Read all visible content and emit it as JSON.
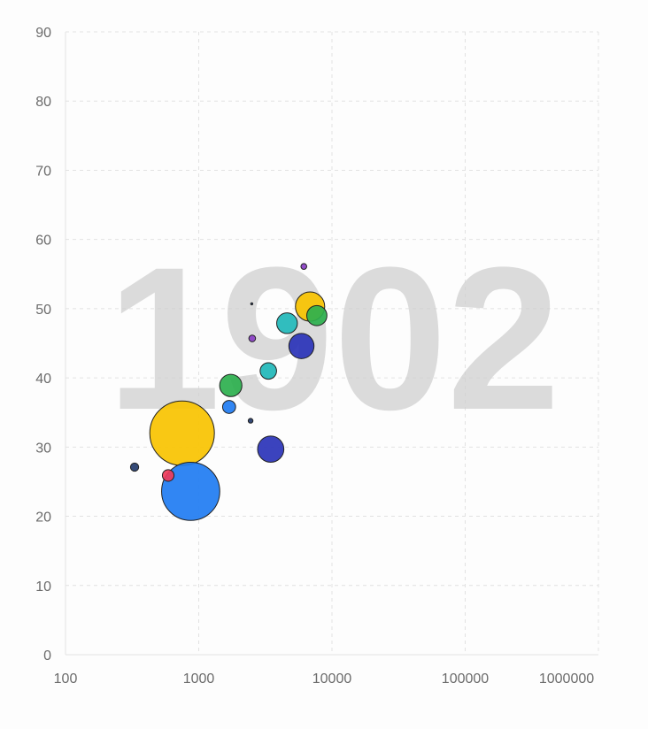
{
  "chart_data": {
    "type": "scatter",
    "subtype": "bubble",
    "year_label": "1902",
    "x_scale": "log",
    "xlim": [
      100,
      1000000
    ],
    "ylim": [
      0,
      90
    ],
    "x_ticks": [
      "100",
      "1000",
      "10000",
      "100000",
      "1000000"
    ],
    "x_tick_values": [
      100,
      1000,
      10000,
      100000,
      1000000
    ],
    "y_ticks": [
      "0",
      "10",
      "20",
      "30",
      "40",
      "50",
      "60",
      "70",
      "80",
      "90"
    ],
    "y_tick_values": [
      0,
      10,
      20,
      30,
      40,
      50,
      60,
      70,
      80,
      90
    ],
    "grid": true,
    "points": [
      {
        "x": 750,
        "y": 32.0,
        "size": 3700,
        "color": "#f8c300"
      },
      {
        "x": 870,
        "y": 23.6,
        "size": 3000,
        "color": "#1f7cf2"
      },
      {
        "x": 330,
        "y": 27.1,
        "size": 60,
        "color": "#243b6b"
      },
      {
        "x": 590,
        "y": 25.9,
        "size": 120,
        "color": "#ef3b5a"
      },
      {
        "x": 1740,
        "y": 38.9,
        "size": 440,
        "color": "#2cb04e"
      },
      {
        "x": 1690,
        "y": 35.8,
        "size": 150,
        "color": "#1f7cf2"
      },
      {
        "x": 2450,
        "y": 33.8,
        "size": 20,
        "color": "#243b6b"
      },
      {
        "x": 3330,
        "y": 41.0,
        "size": 240,
        "color": "#1fb7b8"
      },
      {
        "x": 3470,
        "y": 29.7,
        "size": 610,
        "color": "#2a33b8"
      },
      {
        "x": 2520,
        "y": 45.7,
        "size": 40,
        "color": "#8a3ec6"
      },
      {
        "x": 2500,
        "y": 50.7,
        "size": 2,
        "color": "#243b6b"
      },
      {
        "x": 4600,
        "y": 47.9,
        "size": 380,
        "color": "#1fb7b8"
      },
      {
        "x": 7700,
        "y": 49.0,
        "size": 360,
        "color": "#2cb04e"
      },
      {
        "x": 5900,
        "y": 44.6,
        "size": 560,
        "color": "#2a33b8"
      },
      {
        "x": 6150,
        "y": 56.1,
        "size": 30,
        "color": "#8a3ec6"
      },
      {
        "x": 6850,
        "y": 50.3,
        "size": 760,
        "color": "#f8c300"
      }
    ]
  }
}
